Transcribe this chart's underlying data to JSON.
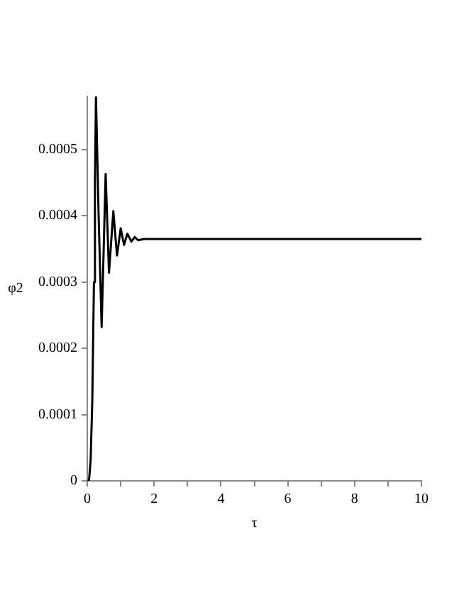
{
  "chart_data": {
    "type": "line",
    "xlabel": "τ",
    "ylabel": "φ2",
    "xlim": [
      0,
      10
    ],
    "xticks": [
      0,
      {
        "value": 1,
        "label": null
      },
      2,
      {
        "value": 3,
        "label": null
      },
      4,
      {
        "value": 5,
        "label": null
      },
      6,
      {
        "value": 7,
        "label": null
      },
      8,
      {
        "value": 9,
        "label": null
      },
      10
    ],
    "ylim": [
      0,
      0.00058
    ],
    "yticks": [
      0,
      0.0001,
      0.0002,
      0.0003,
      0.0004,
      0.0005
    ],
    "grid": false,
    "legend": false,
    "marker": "none",
    "line_style": "solid",
    "series": [
      {
        "color": "#000000",
        "x": [
          0,
          0.05,
          0.1,
          0.15,
          0.2,
          0.23,
          0.26,
          0.34,
          0.43,
          0.55,
          0.65,
          0.78,
          0.89,
          1.0,
          1.1,
          1.2,
          1.32,
          1.42,
          1.52,
          1.7,
          2,
          4,
          6,
          8,
          10
        ],
        "values": [
          0,
          0,
          3e-05,
          0.00012,
          0.0003,
          0.00045,
          0.00058,
          0.0004,
          0.000232,
          0.000463,
          0.000314,
          0.000407,
          0.00034,
          0.000381,
          0.000356,
          0.000373,
          0.000361,
          0.000368,
          0.000363,
          0.000365,
          0.000365,
          0.000365,
          0.000365,
          0.000365,
          0.000365
        ]
      }
    ]
  }
}
